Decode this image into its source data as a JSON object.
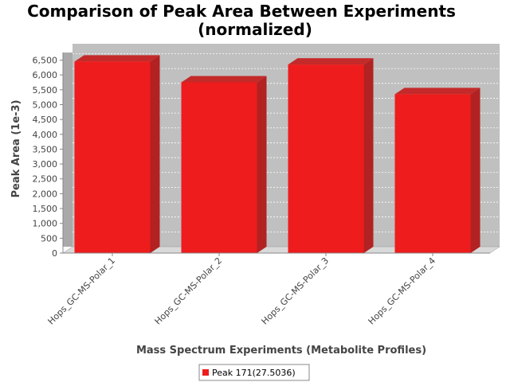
{
  "chart_data": {
    "type": "bar",
    "title": "Comparison of Peak Area Between Experiments",
    "subtitle": "(normalized)",
    "xlabel": "Mass Spectrum Experiments (Metabolite Profiles)",
    "ylabel": "Peak Area (1e-3)",
    "categories": [
      "Hops_GC-MS-Polar_1",
      "Hops_GC-MS-Polar_2",
      "Hops_GC-MS-Polar_3",
      "Hops_GC-MS-Polar_4"
    ],
    "series": [
      {
        "name": "Peak 171(27.5036)",
        "values": [
          6450,
          5750,
          6350,
          5350
        ],
        "color": "#ee1c1c"
      }
    ],
    "ylim": [
      0,
      6700
    ],
    "yticks": [
      0,
      500,
      1000,
      1500,
      2000,
      2500,
      3000,
      3500,
      4000,
      4500,
      5000,
      5500,
      6000,
      6500
    ],
    "ytick_labels": [
      "0",
      "500",
      "1,000",
      "1,500",
      "2,000",
      "2,500",
      "3,000",
      "3,500",
      "4,000",
      "4,500",
      "5,000",
      "5,500",
      "6,000",
      "6,500"
    ],
    "grid": true,
    "three_d": true,
    "plot_background": "#c0c0c0",
    "legend_position": "bottom-center"
  }
}
